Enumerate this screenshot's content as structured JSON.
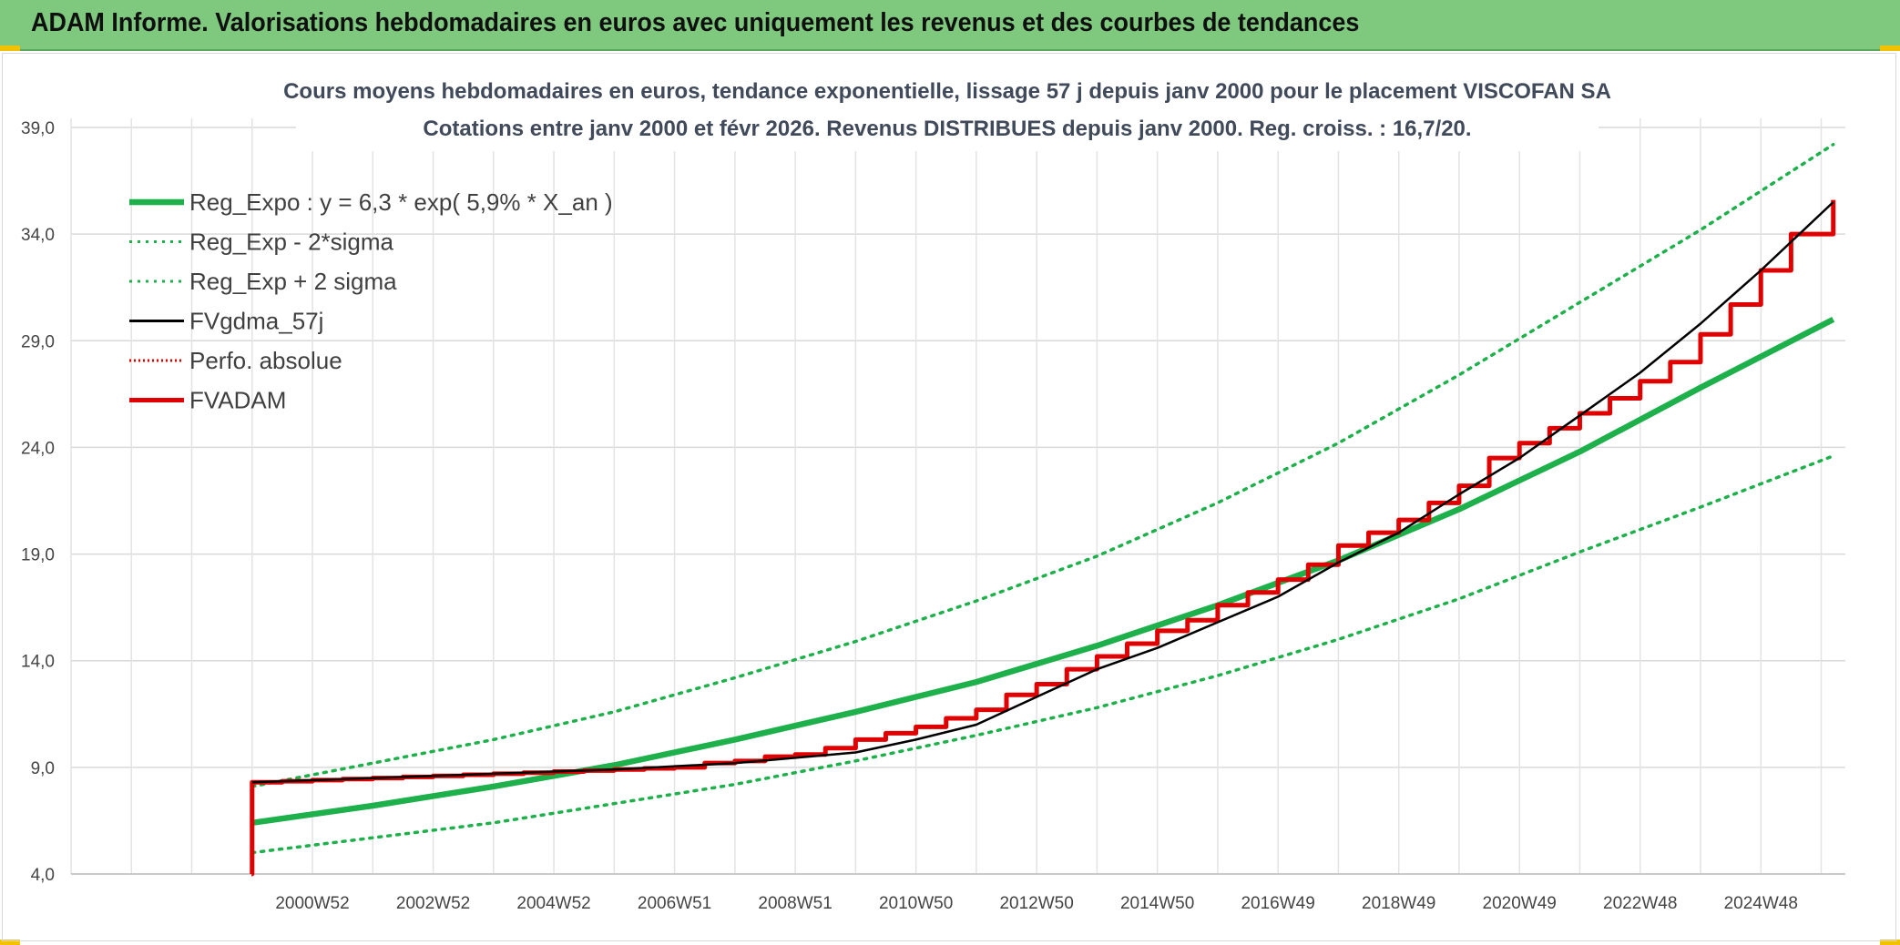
{
  "banner": {
    "title": "ADAM Informe. Valorisations hebdomadaires en euros avec uniquement les revenus et des courbes de tendances",
    "color": "#7fc97f"
  },
  "chart_data": {
    "type": "line",
    "title": "Cours moyens hebdomadaires en euros, tendance exponentielle, lissage 57 j depuis janv 2000 pour le placement VISCOFAN SA",
    "subtitle": "Cotations entre janv 2000 et févr 2026. Revenus DISTRIBUES depuis janv 2000. Reg. croiss. : 16,7/20.",
    "xlabel": "",
    "ylabel": "",
    "ylim": [
      4.0,
      39.0
    ],
    "xlim": [
      1997.0,
      2026.4
    ],
    "y_ticks": [
      "4,0",
      "9,0",
      "14,0",
      "19,0",
      "24,0",
      "29,0",
      "34,0",
      "39,0"
    ],
    "y_tick_values": [
      4,
      9,
      14,
      19,
      24,
      29,
      34,
      39
    ],
    "x_tick_labels": [
      "2000W52",
      "2002W52",
      "2004W52",
      "2006W51",
      "2008W51",
      "2010W50",
      "2012W50",
      "2014W50",
      "2016W49",
      "2018W49",
      "2020W49",
      "2022W48",
      "2024W48"
    ],
    "x_tick_values": [
      2001,
      2003,
      2005,
      2007,
      2009,
      2011,
      2013,
      2015,
      2017,
      2019,
      2021,
      2023,
      2025
    ],
    "grid": true,
    "legend_position": "top-left",
    "series": [
      {
        "name": "Reg_Expo : y = 6,3 * exp( 5,9% *  X_an )",
        "color": "#1db04b",
        "style": "solid-thick",
        "x": [
          2000.0,
          2002.0,
          2004.0,
          2006.0,
          2008.0,
          2010.0,
          2012.0,
          2014.0,
          2016.0,
          2018.0,
          2020.0,
          2022.0,
          2024.0,
          2026.2
        ],
        "values": [
          6.4,
          7.2,
          8.1,
          9.1,
          10.3,
          11.6,
          13.0,
          14.7,
          16.6,
          18.7,
          21.1,
          23.8,
          26.8,
          30.0
        ]
      },
      {
        "name": "Reg_Exp - 2*sigma",
        "color": "#1db04b",
        "style": "dotted",
        "x": [
          2000.0,
          2002.0,
          2004.0,
          2006.0,
          2008.0,
          2010.0,
          2012.0,
          2014.0,
          2016.0,
          2018.0,
          2020.0,
          2022.0,
          2024.0,
          2026.2
        ],
        "values": [
          5.0,
          5.7,
          6.4,
          7.3,
          8.2,
          9.3,
          10.5,
          11.8,
          13.3,
          15.0,
          16.9,
          19.1,
          21.2,
          23.6
        ]
      },
      {
        "name": "Reg_Exp + 2 sigma",
        "color": "#1db04b",
        "style": "dotted",
        "x": [
          2000.0,
          2002.0,
          2004.0,
          2006.0,
          2008.0,
          2010.0,
          2012.0,
          2014.0,
          2016.0,
          2018.0,
          2020.0,
          2022.0,
          2024.0,
          2026.2
        ],
        "values": [
          8.1,
          9.2,
          10.3,
          11.6,
          13.2,
          14.9,
          16.8,
          18.9,
          21.4,
          24.2,
          27.4,
          30.8,
          34.2,
          38.2
        ]
      },
      {
        "name": "FVgdma_57j",
        "color": "#000000",
        "style": "solid",
        "x": [
          2000.0,
          2002.0,
          2004.0,
          2006.0,
          2008.0,
          2010.0,
          2011.0,
          2012.0,
          2013.0,
          2014.0,
          2015.0,
          2016.0,
          2017.0,
          2018.0,
          2019.0,
          2020.0,
          2021.0,
          2022.0,
          2023.0,
          2024.0,
          2025.0,
          2026.2
        ],
        "values": [
          8.3,
          8.5,
          8.7,
          8.9,
          9.2,
          9.7,
          10.3,
          11.0,
          12.3,
          13.6,
          14.6,
          15.8,
          17.0,
          18.6,
          20.0,
          21.8,
          23.5,
          25.5,
          27.5,
          29.8,
          32.3,
          35.5
        ]
      },
      {
        "name": "Perfo. absolue",
        "color": "#e00000",
        "style": "dotted",
        "x": [],
        "values": []
      },
      {
        "name": "FVADAM",
        "color": "#e00000",
        "style": "step-thick",
        "x": [
          1999.99,
          2000.0,
          2000.5,
          2001.0,
          2001.5,
          2002.0,
          2002.5,
          2003.0,
          2003.5,
          2004.0,
          2004.5,
          2005.0,
          2005.5,
          2006.0,
          2006.5,
          2007.0,
          2007.5,
          2008.0,
          2008.5,
          2009.0,
          2009.5,
          2010.0,
          2010.5,
          2011.0,
          2011.5,
          2012.0,
          2012.5,
          2013.0,
          2013.5,
          2014.0,
          2014.5,
          2015.0,
          2015.5,
          2016.0,
          2016.5,
          2017.0,
          2017.5,
          2018.0,
          2018.5,
          2019.0,
          2019.5,
          2020.0,
          2020.5,
          2021.0,
          2021.5,
          2022.0,
          2022.5,
          2023.0,
          2023.5,
          2024.0,
          2024.5,
          2025.0,
          2025.5,
          2026.2
        ],
        "values": [
          4.0,
          8.3,
          8.35,
          8.4,
          8.45,
          8.5,
          8.55,
          8.6,
          8.65,
          8.7,
          8.75,
          8.8,
          8.85,
          8.9,
          8.95,
          9.0,
          9.2,
          9.3,
          9.5,
          9.6,
          9.9,
          10.3,
          10.6,
          10.9,
          11.3,
          11.7,
          12.4,
          12.9,
          13.6,
          14.2,
          14.8,
          15.4,
          15.9,
          16.6,
          17.2,
          17.8,
          18.5,
          19.4,
          20.0,
          20.6,
          21.4,
          22.2,
          23.5,
          24.2,
          24.9,
          25.6,
          26.3,
          27.1,
          28.0,
          29.3,
          30.7,
          32.3,
          34.0,
          35.6
        ]
      }
    ]
  }
}
